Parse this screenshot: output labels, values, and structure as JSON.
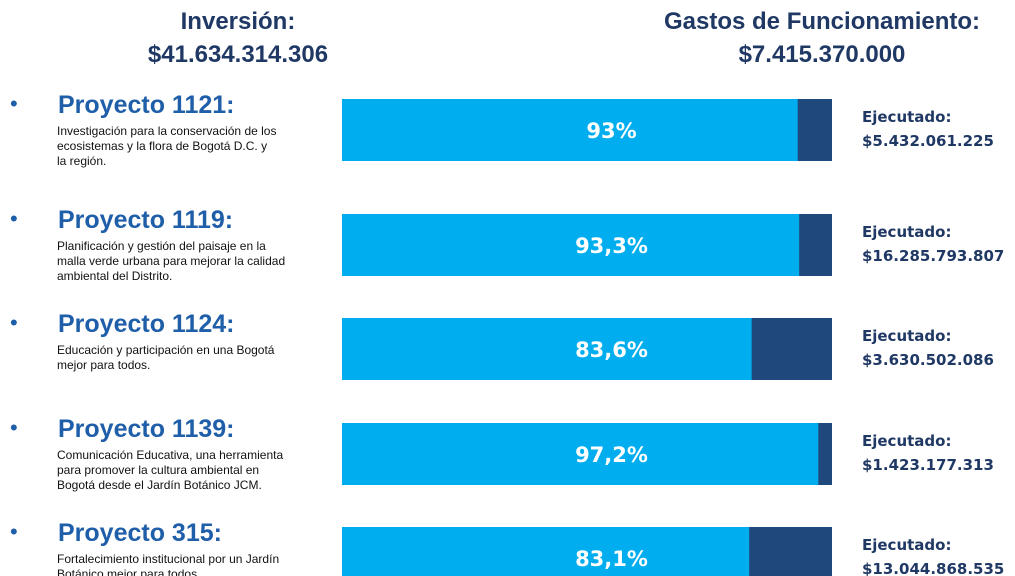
{
  "headers": [
    {
      "label": "Inversión:",
      "amount": "$41.634.314.306"
    },
    {
      "label": "Gastos de Funcionamiento:",
      "amount": "$7.415.370.000"
    }
  ],
  "chart_data": {
    "type": "bar",
    "orientation": "horizontal",
    "xlim": [
      0,
      100
    ],
    "color": "#00aeef",
    "remainder_color": "#1f497d",
    "categories": [
      "Proyecto 1121:",
      "Proyecto 1119:",
      "Proyecto 1124:",
      "Proyecto 1139:",
      "Proyecto 315:"
    ],
    "descriptions": [
      [
        "Investigación para la conservación de los",
        "ecosistemas y la flora de Bogotá D.C. y",
        "la región."
      ],
      [
        "Planificación y gestión del paisaje en la",
        "malla verde urbana para mejorar la calidad",
        "ambiental del Distrito."
      ],
      [
        "Educación y participación en una Bogotá",
        "mejor para todos."
      ],
      [
        "Comunicación Educativa, una herramienta",
        "para promover la cultura ambiental en",
        "Bogotá desde el Jardín Botánico JCM."
      ],
      [
        "Fortalecimiento institucional por un Jardín",
        "Botánico mejor para todos."
      ]
    ],
    "values": [
      93,
      93.3,
      83.6,
      97.2,
      83.1
    ],
    "value_labels": [
      "93%",
      "93,3%",
      "83,6%",
      "97,2%",
      "83,1%"
    ],
    "executed": [
      {
        "label": "Ejecutado:",
        "amount": "$5.432.061.225"
      },
      {
        "label": "Ejecutado:",
        "amount": "$16.285.793.807"
      },
      {
        "label": "Ejecutado:",
        "amount": "$3.630.502.086"
      },
      {
        "label": "Ejecutado:",
        "amount": "$1.423.177.313"
      },
      {
        "label": "Ejecutado:",
        "amount": "$13.044.868.535"
      }
    ]
  }
}
